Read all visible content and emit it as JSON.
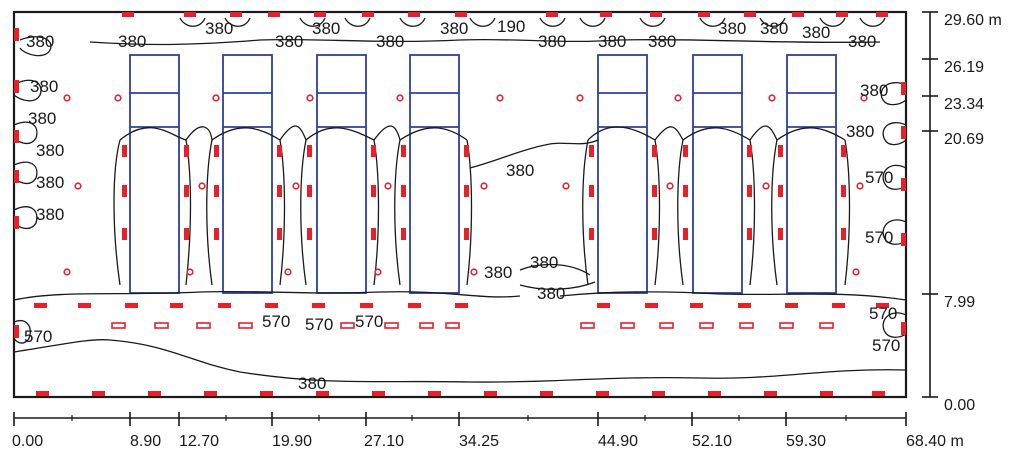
{
  "x_axis": {
    "unit_label": "68.40 m",
    "ticks": [
      "0.00",
      "8.90",
      "12.70",
      "19.90",
      "27.10",
      "34.25",
      "44.90",
      "52.10",
      "59.30"
    ]
  },
  "y_axis": {
    "top_label": "29.60 m",
    "ticks": [
      "26.19",
      "23.34",
      "20.69",
      "7.99",
      "0.00"
    ]
  },
  "contour_labels": {
    "c190": "190",
    "c380": "380",
    "c570": "570"
  },
  "colors": {
    "luminaire": "#e8202a",
    "rack": "#2b3fa6",
    "contour": "#1a1a1a"
  }
}
